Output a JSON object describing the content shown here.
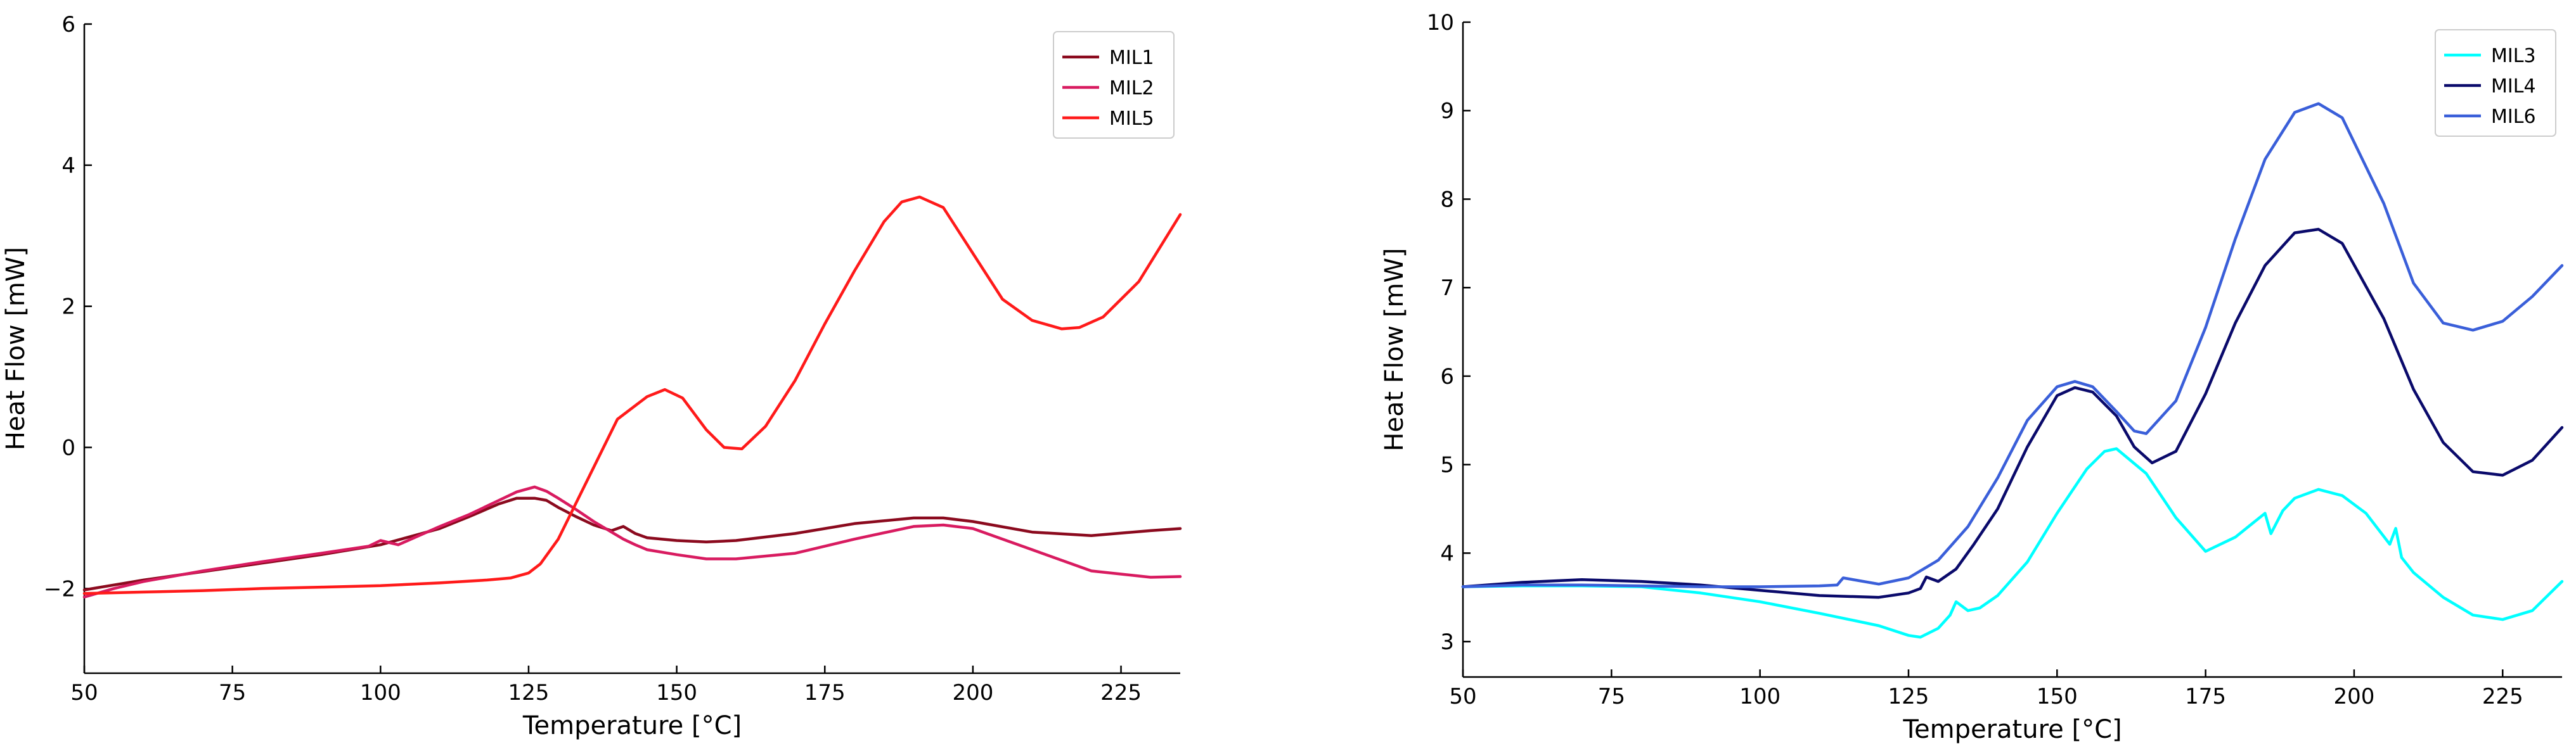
{
  "chart_data": [
    {
      "type": "line",
      "title": "",
      "xlabel": "Temperature [°C]",
      "ylabel": "Heat Flow [mW]",
      "xlim": [
        50,
        235
      ],
      "ylim": [
        -3.2,
        6
      ],
      "xticks": [
        50,
        75,
        100,
        125,
        150,
        175,
        200,
        225
      ],
      "yticks": [
        -2,
        0,
        2,
        4,
        6
      ],
      "ytick_labels": [
        "−2",
        "0",
        "2",
        "4",
        "6"
      ],
      "legend_position": "top-right",
      "series": [
        {
          "name": "MIL1",
          "color": "#8b0a1e",
          "x": [
            50,
            55,
            60,
            70,
            80,
            90,
            100,
            110,
            115,
            120,
            123,
            126,
            128,
            130,
            133,
            136,
            139,
            141,
            143,
            145,
            150,
            155,
            160,
            170,
            180,
            190,
            195,
            200,
            210,
            220,
            230,
            235
          ],
          "y": [
            -2.02,
            -1.95,
            -1.88,
            -1.76,
            -1.64,
            -1.52,
            -1.38,
            -1.15,
            -0.98,
            -0.8,
            -0.72,
            -0.72,
            -0.75,
            -0.85,
            -0.98,
            -1.1,
            -1.18,
            -1.12,
            -1.22,
            -1.28,
            -1.32,
            -1.34,
            -1.32,
            -1.22,
            -1.08,
            -1.0,
            -1.0,
            -1.05,
            -1.2,
            -1.25,
            -1.18,
            -1.15
          ]
        },
        {
          "name": "MIL2",
          "color": "#d81b60",
          "x": [
            50,
            55,
            60,
            70,
            80,
            90,
            98,
            100,
            103,
            110,
            115,
            120,
            123,
            126,
            128,
            130,
            133,
            136,
            139,
            141,
            143,
            145,
            150,
            155,
            160,
            170,
            180,
            190,
            195,
            200,
            210,
            220,
            230,
            235
          ],
          "y": [
            -2.12,
            -2.0,
            -1.9,
            -1.75,
            -1.62,
            -1.5,
            -1.4,
            -1.32,
            -1.38,
            -1.12,
            -0.95,
            -0.75,
            -0.63,
            -0.56,
            -0.62,
            -0.72,
            -0.88,
            -1.05,
            -1.2,
            -1.3,
            -1.38,
            -1.45,
            -1.52,
            -1.58,
            -1.58,
            -1.5,
            -1.3,
            -1.12,
            -1.1,
            -1.15,
            -1.45,
            -1.75,
            -1.84,
            -1.83
          ]
        },
        {
          "name": "MIL5",
          "color": "#ff1a1a",
          "x": [
            50,
            60,
            70,
            80,
            90,
            100,
            110,
            118,
            122,
            125,
            127,
            130,
            135,
            140,
            145,
            148,
            151,
            155,
            158,
            161,
            165,
            170,
            175,
            180,
            185,
            188,
            191,
            195,
            200,
            205,
            210,
            215,
            218,
            222,
            228,
            235
          ],
          "y": [
            -2.07,
            -2.05,
            -2.03,
            -2.0,
            -1.98,
            -1.96,
            -1.92,
            -1.88,
            -1.85,
            -1.78,
            -1.65,
            -1.3,
            -0.45,
            0.4,
            0.72,
            0.82,
            0.7,
            0.25,
            0.0,
            -0.02,
            0.3,
            0.95,
            1.75,
            2.5,
            3.2,
            3.48,
            3.55,
            3.4,
            2.75,
            2.1,
            1.8,
            1.68,
            1.7,
            1.85,
            2.35,
            3.3
          ]
        }
      ]
    },
    {
      "type": "line",
      "title": "",
      "xlabel": "Temperature [°C]",
      "ylabel": "Heat Flow [mW]",
      "xlim": [
        50,
        235
      ],
      "ylim": [
        2.6,
        10
      ],
      "xticks": [
        50,
        75,
        100,
        125,
        150,
        175,
        200,
        225
      ],
      "yticks": [
        3,
        4,
        5,
        6,
        7,
        8,
        9,
        10
      ],
      "ytick_labels": [
        "3",
        "4",
        "5",
        "6",
        "7",
        "8",
        "9",
        "10"
      ],
      "legend_position": "top-right",
      "series": [
        {
          "name": "MIL3",
          "color": "#00ffff",
          "x": [
            50,
            60,
            70,
            80,
            90,
            100,
            110,
            120,
            125,
            127,
            130,
            132,
            133,
            135,
            137,
            140,
            145,
            150,
            155,
            158,
            160,
            165,
            170,
            175,
            180,
            185,
            186,
            188,
            190,
            194,
            198,
            202,
            206,
            207,
            208,
            210,
            215,
            220,
            225,
            230,
            235
          ],
          "y": [
            3.62,
            3.63,
            3.63,
            3.62,
            3.55,
            3.45,
            3.32,
            3.18,
            3.07,
            3.05,
            3.15,
            3.3,
            3.45,
            3.35,
            3.38,
            3.52,
            3.9,
            4.45,
            4.95,
            5.15,
            5.18,
            4.9,
            4.4,
            4.02,
            4.18,
            4.45,
            4.22,
            4.48,
            4.62,
            4.72,
            4.65,
            4.45,
            4.1,
            4.28,
            3.95,
            3.78,
            3.5,
            3.3,
            3.25,
            3.35,
            3.68
          ]
        },
        {
          "name": "MIL4",
          "color": "#0a0a6b",
          "x": [
            50,
            60,
            70,
            80,
            90,
            100,
            110,
            120,
            125,
            127,
            128,
            130,
            133,
            136,
            140,
            145,
            150,
            153,
            156,
            160,
            163,
            166,
            170,
            175,
            180,
            185,
            190,
            194,
            198,
            205,
            210,
            215,
            220,
            225,
            230,
            235
          ],
          "y": [
            3.62,
            3.67,
            3.7,
            3.68,
            3.64,
            3.58,
            3.52,
            3.5,
            3.55,
            3.6,
            3.73,
            3.68,
            3.82,
            4.1,
            4.5,
            5.2,
            5.78,
            5.87,
            5.82,
            5.55,
            5.2,
            5.02,
            5.15,
            5.8,
            6.6,
            7.25,
            7.62,
            7.66,
            7.5,
            6.65,
            5.85,
            5.25,
            4.92,
            4.88,
            5.05,
            5.42
          ]
        },
        {
          "name": "MIL6",
          "color": "#3a5fd9",
          "x": [
            50,
            60,
            70,
            80,
            90,
            100,
            110,
            113,
            114,
            120,
            125,
            130,
            135,
            140,
            145,
            150,
            153,
            156,
            160,
            163,
            165,
            170,
            175,
            180,
            185,
            190,
            194,
            198,
            205,
            210,
            215,
            220,
            225,
            230,
            235
          ],
          "y": [
            3.62,
            3.64,
            3.64,
            3.63,
            3.62,
            3.62,
            3.63,
            3.64,
            3.72,
            3.65,
            3.72,
            3.92,
            4.3,
            4.85,
            5.5,
            5.88,
            5.94,
            5.88,
            5.6,
            5.38,
            5.35,
            5.72,
            6.55,
            7.55,
            8.45,
            8.98,
            9.08,
            8.92,
            7.95,
            7.05,
            6.6,
            6.52,
            6.62,
            6.9,
            7.25
          ]
        }
      ]
    }
  ]
}
